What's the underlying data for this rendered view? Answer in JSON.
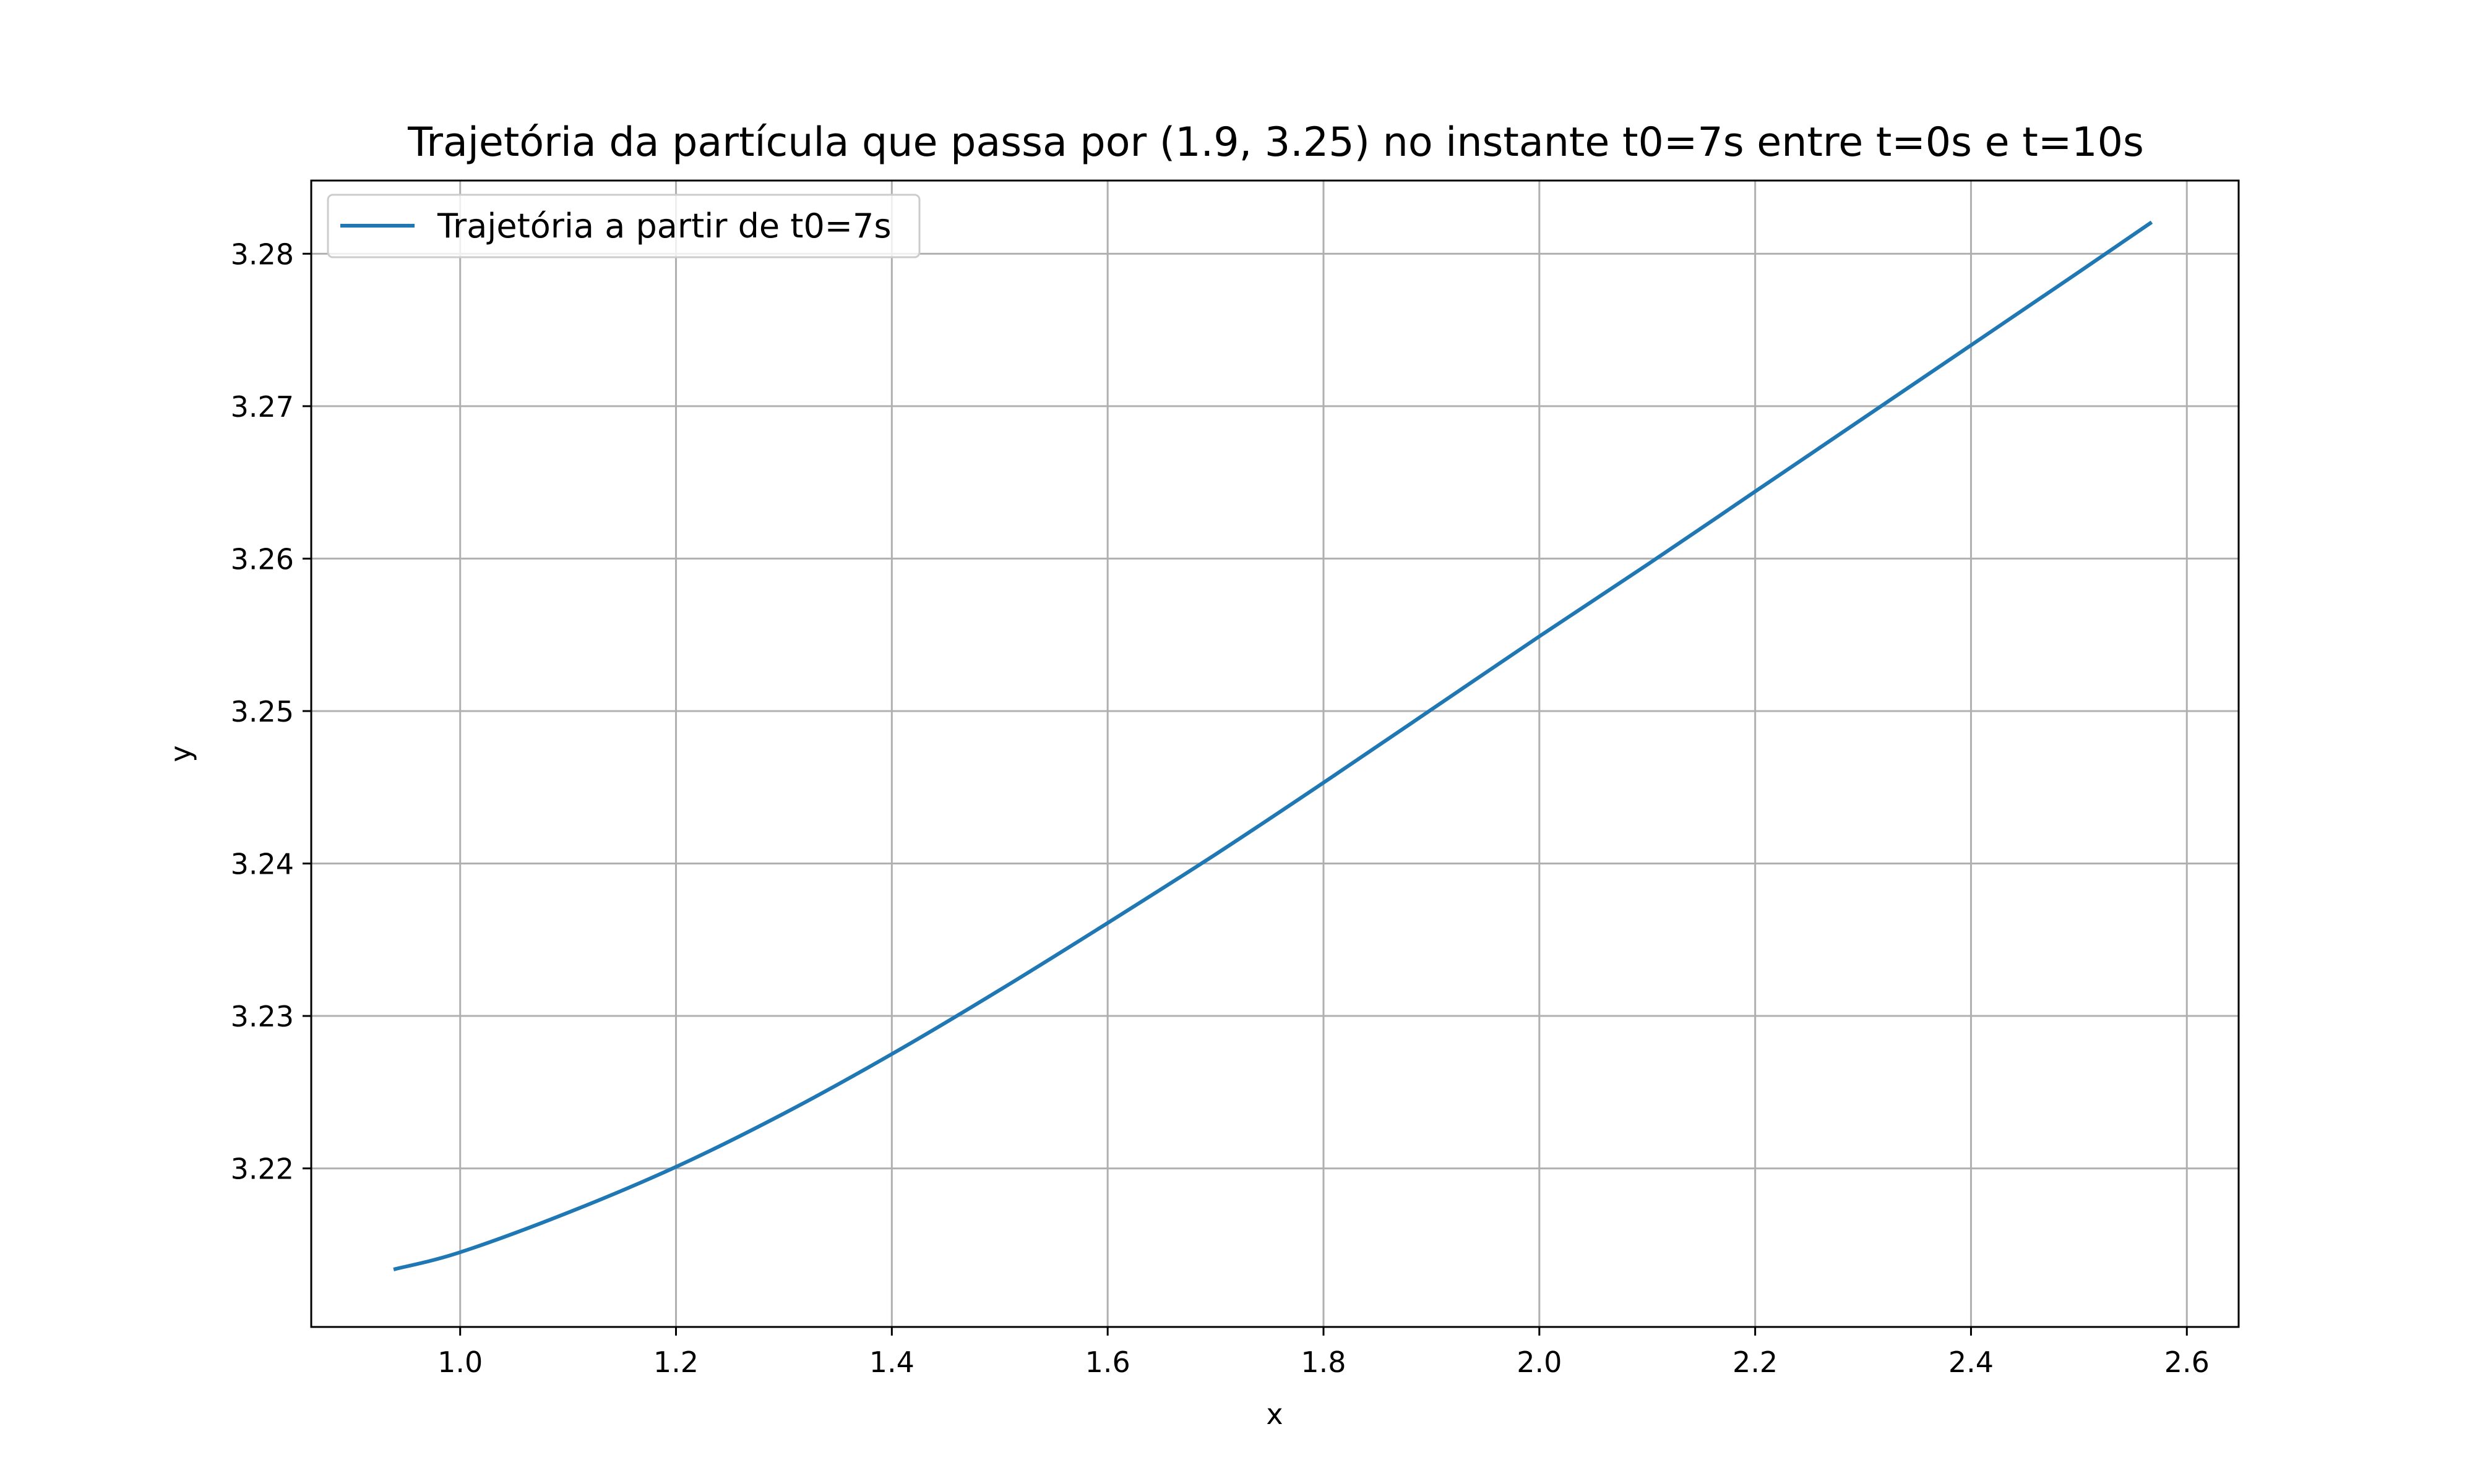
{
  "chart_data": {
    "type": "line",
    "title": "Trajetória da partícula que passa por (1.9, 3.25) no instante t0=7s entre t=0s e t=10s",
    "xlabel": "x",
    "ylabel": "y",
    "xlim": [
      0.862,
      2.648
    ],
    "ylim": [
      3.2096,
      3.2848
    ],
    "xticks": [
      1.0,
      1.2,
      1.4,
      1.6,
      1.8,
      2.0,
      2.2,
      2.4,
      2.6
    ],
    "xtick_labels": [
      "1.0",
      "1.2",
      "1.4",
      "1.6",
      "1.8",
      "2.0",
      "2.2",
      "2.4",
      "2.6"
    ],
    "yticks": [
      3.22,
      3.23,
      3.24,
      3.25,
      3.26,
      3.27,
      3.28
    ],
    "ytick_labels": [
      "3.22",
      "3.23",
      "3.24",
      "3.25",
      "3.26",
      "3.27",
      "3.28"
    ],
    "grid": true,
    "legend_position": "upper-left",
    "series": [
      {
        "name": "Trajetória a partir de t0=7s",
        "color": "#1f77b4",
        "x": [
          0.94,
          1.0,
          1.1,
          1.2,
          1.3,
          1.4,
          1.5,
          1.6,
          1.7,
          1.8,
          1.9,
          2.0,
          2.1,
          2.2,
          2.3,
          2.4,
          2.5,
          2.566
        ],
        "y": [
          3.2134,
          3.2145,
          3.2171,
          3.2201,
          3.2236,
          3.2275,
          3.2317,
          3.2361,
          3.2406,
          3.2453,
          3.2501,
          3.2549,
          3.2596,
          3.2644,
          3.2692,
          3.274,
          3.2788,
          3.282
        ]
      }
    ]
  },
  "colors": {
    "line": "#1f77b4",
    "grid": "#b0b0b0",
    "axes": "#000000",
    "background": "#ffffff"
  }
}
